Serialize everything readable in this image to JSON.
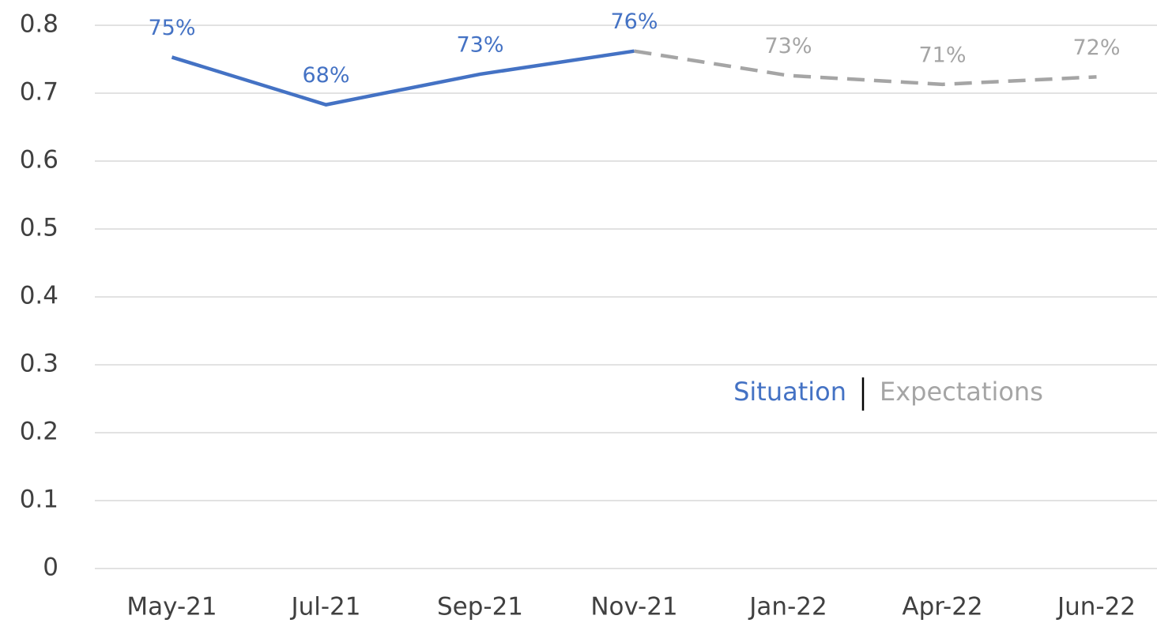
{
  "chart_data": {
    "type": "line",
    "categories": [
      "May-21",
      "Jul-21",
      "Sep-21",
      "Nov-21",
      "Jan-22",
      "Apr-22",
      "Jun-22"
    ],
    "series": [
      {
        "name": "Situation",
        "color": "#4472c4",
        "dash": false,
        "values": [
          0.753,
          0.683,
          0.728,
          0.762,
          null,
          null,
          null
        ],
        "value_labels": [
          "75%",
          "68%",
          "73%",
          "76%",
          null,
          null,
          null
        ]
      },
      {
        "name": "Expectations",
        "color": "#a5a5a5",
        "dash": true,
        "values": [
          null,
          null,
          null,
          0.762,
          0.726,
          0.713,
          0.724
        ],
        "value_labels": [
          null,
          null,
          null,
          null,
          "73%",
          "71%",
          "72%"
        ]
      }
    ],
    "ylim": [
      0,
      0.8
    ],
    "yticks": [
      0,
      0.1,
      0.2,
      0.3,
      0.4,
      0.5,
      0.6,
      0.7,
      0.8
    ],
    "grid": true
  }
}
